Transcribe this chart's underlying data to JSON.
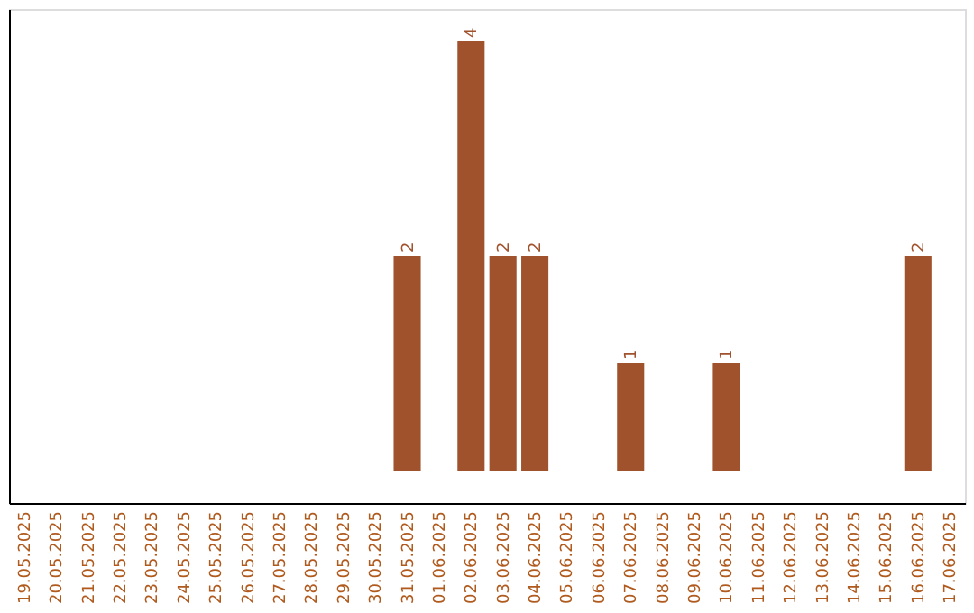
{
  "chart_data": {
    "type": "bar",
    "categories": [
      "19.05.2025",
      "20.05.2025",
      "21.05.2025",
      "22.05.2025",
      "23.05.2025",
      "24.05.2025",
      "25.05.2025",
      "26.05.2025",
      "27.05.2025",
      "28.05.2025",
      "29.05.2025",
      "30.05.2025",
      "31.05.2025",
      "01.06.2025",
      "02.06.2025",
      "03.06.2025",
      "04.06.2025",
      "05.06.2025",
      "06.06.2025",
      "07.06.2025",
      "08.06.2025",
      "09.06.2025",
      "10.06.2025",
      "11.06.2025",
      "12.06.2025",
      "13.06.2025",
      "14.06.2025",
      "15.06.2025",
      "16.06.2025",
      "17.06.2025"
    ],
    "values": [
      null,
      null,
      null,
      null,
      null,
      null,
      null,
      null,
      null,
      null,
      null,
      null,
      2,
      null,
      4,
      2,
      2,
      null,
      null,
      1,
      null,
      null,
      1,
      null,
      null,
      null,
      null,
      null,
      2,
      null
    ],
    "data_labels": true,
    "color": "#a0522d",
    "grid": false,
    "tick_labels": "x"
  }
}
